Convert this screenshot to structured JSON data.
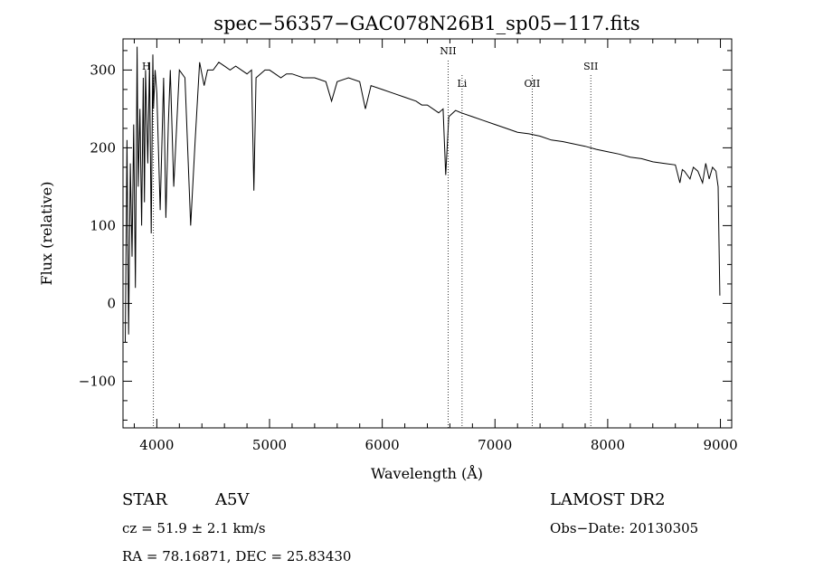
{
  "chart_data": {
    "type": "line",
    "title": "spec−56357−GAC078N26B1_sp05−117.fits",
    "xlabel": "Wavelength (Å)",
    "ylabel": "Flux (relative)",
    "xlim": [
      3700,
      9100
    ],
    "ylim": [
      -160,
      340
    ],
    "xticks": [
      4000,
      5000,
      6000,
      7000,
      8000,
      9000
    ],
    "xtick_labels": [
      "4000",
      "5000",
      "6000",
      "7000",
      "8000",
      "9000"
    ],
    "yticks": [
      -100,
      0,
      100,
      200,
      300
    ],
    "ytick_labels": [
      "−100",
      "0",
      "100",
      "200",
      "300"
    ],
    "grid": false,
    "emission_lines": [
      {
        "label": "H",
        "x": 3970
      },
      {
        "label": "NII",
        "x": 6584
      },
      {
        "label": "Li",
        "x": 6708
      },
      {
        "label": "OII",
        "x": 7330
      },
      {
        "label": "SII",
        "x": 7850
      }
    ],
    "series": [
      {
        "x": [
          3720,
          3735,
          3750,
          3765,
          3780,
          3795,
          3810,
          3825,
          3835,
          3850,
          3865,
          3880,
          3890,
          3900,
          3920,
          3935,
          3950,
          3965,
          3970,
          3985,
          4000,
          4030,
          4060,
          4080,
          4102,
          4120,
          4150,
          4200,
          4250,
          4300,
          4340,
          4380,
          4420,
          4450,
          4500,
          4550,
          4600,
          4650,
          4700,
          4750,
          4800,
          4840,
          4861,
          4880,
          4920,
          4960,
          5000,
          5050,
          5100,
          5150,
          5200,
          5300,
          5400,
          5500,
          5550,
          5600,
          5700,
          5800,
          5850,
          5900,
          6000,
          6100,
          6200,
          6300,
          6350,
          6400,
          6500,
          6540,
          6563,
          6590,
          6650,
          6700,
          6800,
          6900,
          7000,
          7100,
          7200,
          7300,
          7400,
          7500,
          7600,
          7700,
          7800,
          7900,
          8000,
          8100,
          8200,
          8300,
          8400,
          8500,
          8600,
          8640,
          8662,
          8680,
          8730,
          8760,
          8800,
          8842,
          8870,
          8900,
          8930,
          8960,
          8980,
          8995
        ],
        "y": [
          -50,
          210,
          -40,
          180,
          60,
          230,
          20,
          330,
          150,
          250,
          100,
          290,
          130,
          300,
          180,
          310,
          90,
          320,
          250,
          300,
          270,
          120,
          290,
          110,
          230,
          300,
          150,
          300,
          290,
          100,
          210,
          310,
          280,
          300,
          300,
          310,
          305,
          300,
          305,
          300,
          295,
          300,
          145,
          290,
          295,
          300,
          300,
          295,
          290,
          295,
          295,
          290,
          290,
          285,
          260,
          285,
          290,
          285,
          250,
          280,
          275,
          270,
          265,
          260,
          255,
          255,
          245,
          250,
          165,
          240,
          248,
          245,
          240,
          235,
          230,
          225,
          220,
          218,
          215,
          210,
          208,
          205,
          202,
          198,
          195,
          192,
          188,
          186,
          182,
          180,
          178,
          155,
          172,
          170,
          160,
          175,
          170,
          155,
          180,
          160,
          175,
          170,
          150,
          10
        ]
      }
    ]
  },
  "info": {
    "class": "STAR",
    "subclass": "A5V",
    "survey": "LAMOST DR2",
    "cz": "cz = 51.9 ± 2.1 km/s",
    "obs_date": "Obs−Date: 20130305",
    "coords": "RA =  78.16871, DEC =  25.83430"
  }
}
